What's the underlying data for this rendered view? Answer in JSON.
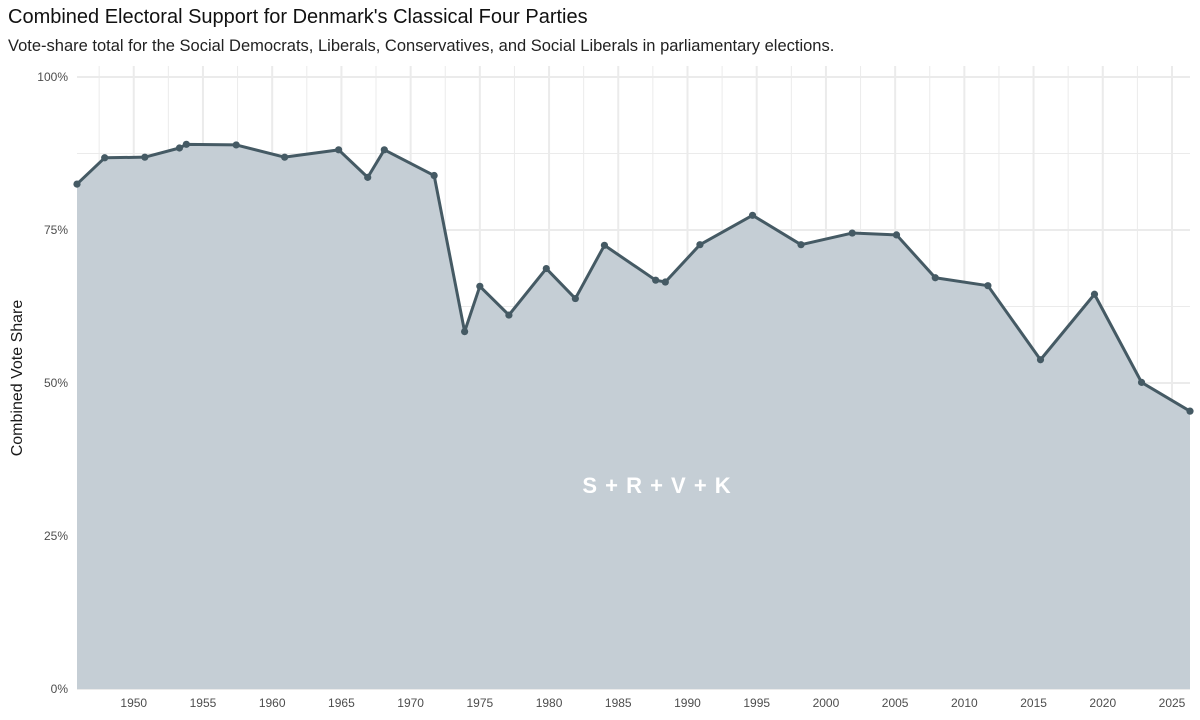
{
  "header": {
    "title": "Combined Electoral Support for Denmark's Classical Four Parties",
    "subtitle": "Vote-share total for the Social Democrats, Liberals, Conservatives, and Social Liberals in parliamentary elections."
  },
  "colors": {
    "line": "#455a64",
    "area": "#c5ced5",
    "grid": "#ebebeb",
    "annotation": "#ffffff"
  },
  "chart_data": {
    "type": "area",
    "title": "Combined Electoral Support for Denmark's Classical Four Parties",
    "subtitle": "Vote-share total for the Social Democrats, Liberals, Conservatives, and Social Liberals in parliamentary elections.",
    "xlabel": "",
    "ylabel": "Combined Vote Share",
    "xlim": [
      1945.9,
      2026.3
    ],
    "ylim": [
      0,
      100
    ],
    "x_ticks": [
      1950,
      1955,
      1960,
      1965,
      1970,
      1975,
      1980,
      1985,
      1990,
      1995,
      2000,
      2005,
      2010,
      2015,
      2020,
      2025
    ],
    "y_ticks": [
      0,
      25,
      50,
      75,
      100
    ],
    "y_tick_labels": [
      "0%",
      "25%",
      "50%",
      "75%",
      "100%"
    ],
    "grid": true,
    "annotation": "S + R + V + K",
    "series": [
      {
        "x": [
          1945.9,
          1947.9,
          1950.8,
          1953.3,
          1953.8,
          1957.4,
          1960.9,
          1964.8,
          1966.9,
          1968.1,
          1971.7,
          1973.9,
          1975.0,
          1977.1,
          1979.8,
          1981.9,
          1984.0,
          1987.7,
          1988.4,
          1990.9,
          1994.7,
          1998.2,
          2001.9,
          2005.1,
          2007.9,
          2011.7,
          2015.5,
          2019.4,
          2022.8,
          2026.3
        ],
        "values": [
          82.5,
          86.8,
          86.9,
          88.4,
          89.0,
          88.9,
          86.9,
          88.1,
          83.6,
          88.1,
          83.9,
          58.4,
          65.8,
          61.1,
          68.7,
          63.8,
          72.5,
          66.8,
          66.5,
          72.6,
          77.4,
          72.6,
          74.5,
          74.2,
          67.2,
          65.9,
          53.8,
          64.5,
          50.1,
          45.4
        ]
      }
    ]
  }
}
